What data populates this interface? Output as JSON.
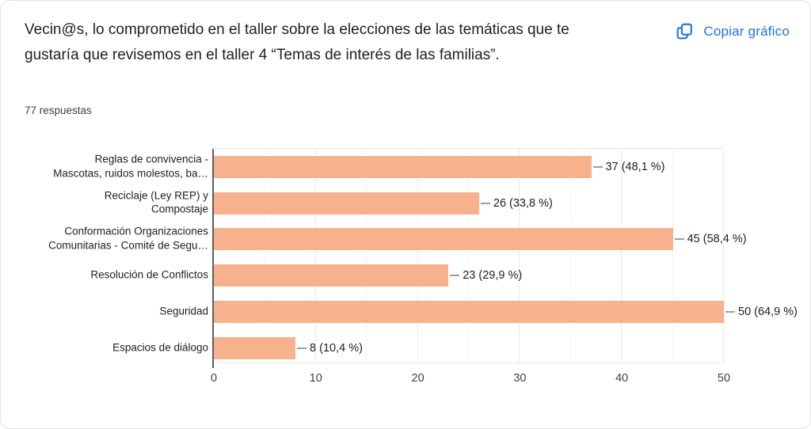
{
  "header": {
    "title": "Vecin@s, lo comprometido en el taller sobre la elecciones de las temáticas que te gustaría que revisemos en el taller 4 “Temas de interés de las familias”.",
    "responses": "77 respuestas",
    "copy_button": "Copiar gráfico",
    "copy_icon": "copy-icon"
  },
  "colors": {
    "bar": "#F7B18C",
    "accent_blue": "#1A73E8",
    "axis": "#5F5F5F",
    "leader": "#9E9E9E",
    "grid_major": "#E9E9E9",
    "grid_minor": "#F3F3F3",
    "text_dark": "#202124",
    "text_gray": "#3C4043",
    "card_border": "#E6E4E4"
  },
  "chart_data": {
    "type": "bar",
    "orientation": "horizontal",
    "title": "Vecin@s, lo comprometido en el taller sobre la elecciones de las temáticas que te gustaría que revisemos en el taller 4 “Temas de interés de las familias”.",
    "subtitle": "77 respuestas",
    "total_responses": 77,
    "categories": [
      "Reglas de convivencia -\nMascotas, ruidos molestos, ba…",
      "Reciclaje (Ley REP) y\nCompostaje",
      "Conformación Organizaciones\nComunitarias - Comité de Segu…",
      "Resolución de Conflictos",
      "Seguridad",
      "Espacios de diálogo"
    ],
    "values": [
      37,
      26,
      45,
      23,
      50,
      8
    ],
    "value_labels": [
      "37 (48,1 %)",
      "26 (33,8 %)",
      "45 (58,4 %)",
      "23 (29,9 %)",
      "50 (64,9 %)",
      "8 (10,4 %)"
    ],
    "xlabel": "",
    "ylabel": "",
    "xlim": [
      0,
      50
    ],
    "xticks": [
      0,
      10,
      20,
      30,
      40,
      50
    ],
    "minor_tick_step": 5,
    "grid": true,
    "legend": false
  }
}
